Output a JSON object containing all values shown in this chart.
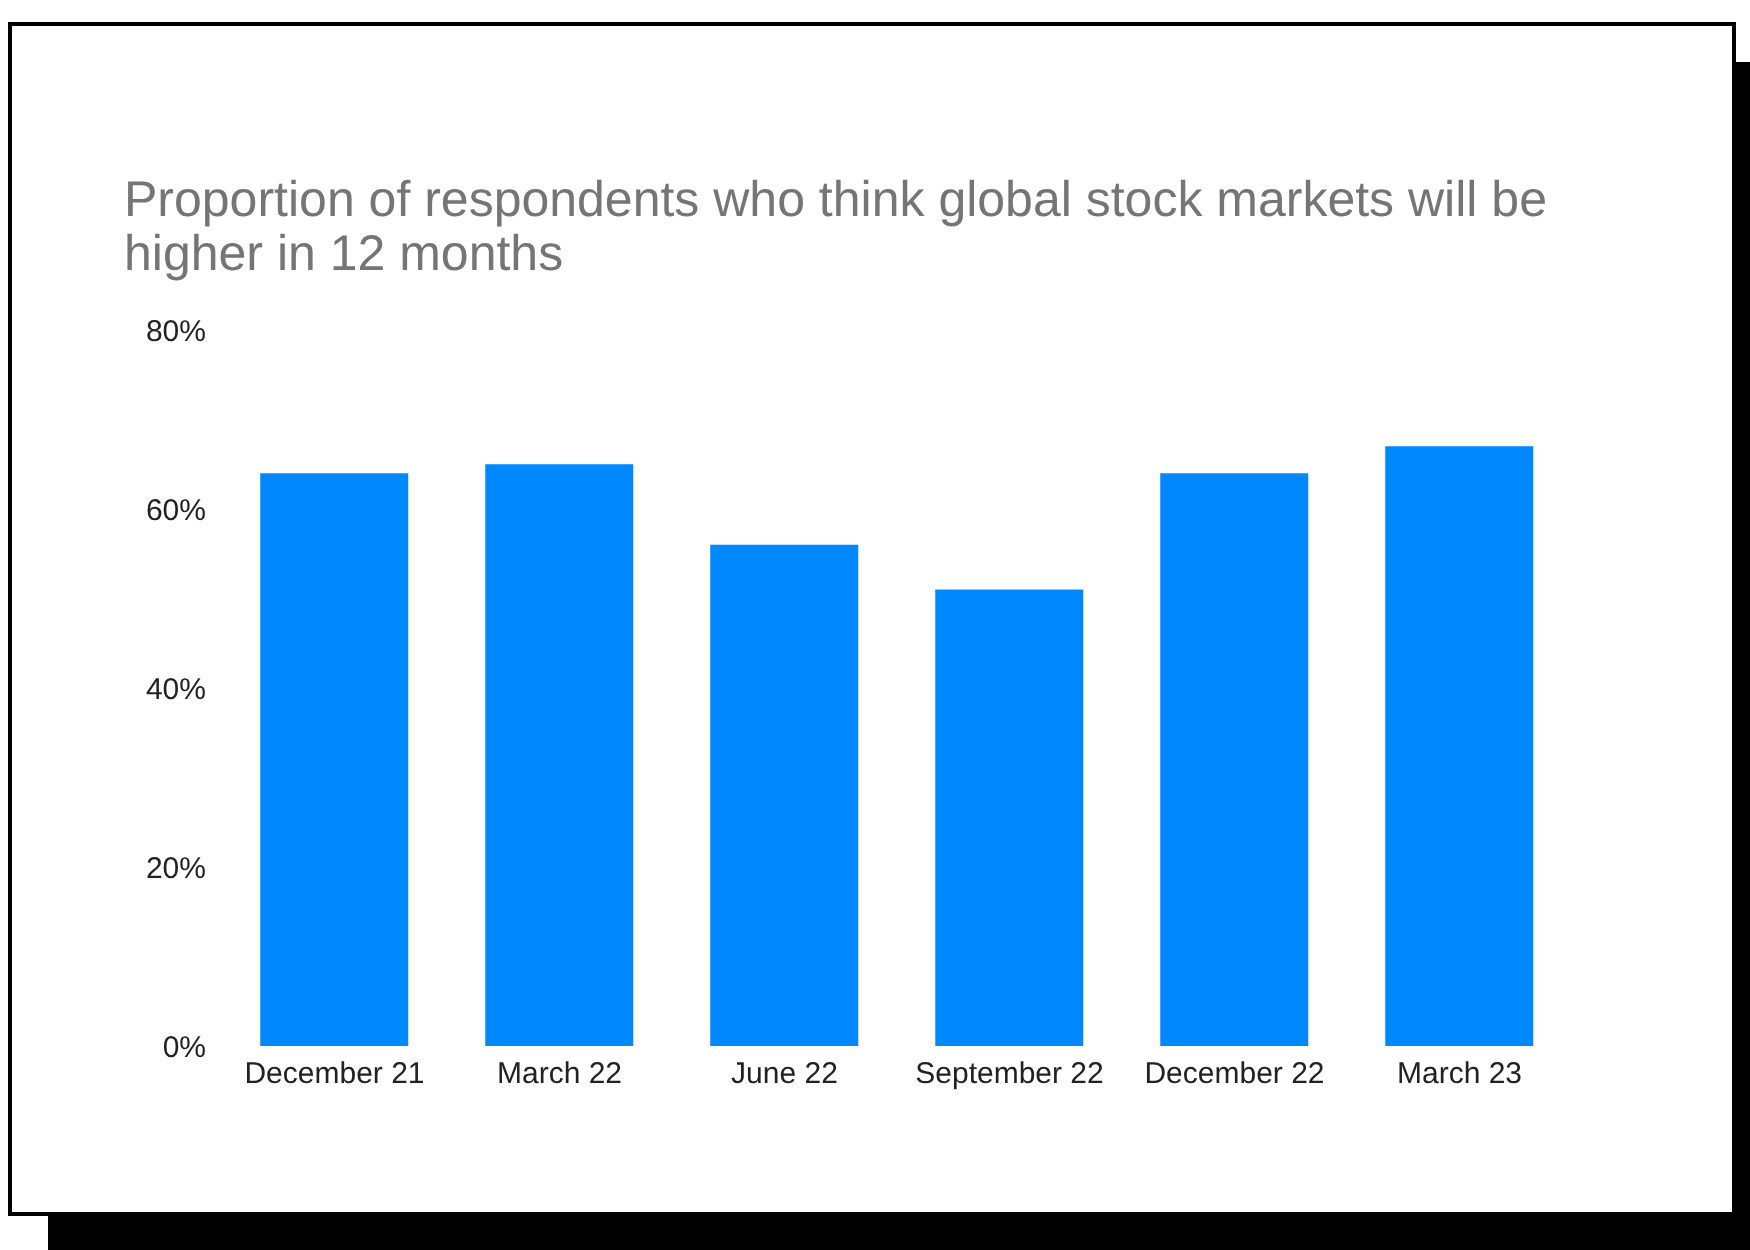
{
  "chart_data": {
    "type": "bar",
    "title": "Proportion of respondents who think global stock markets will be higher in 12 months",
    "categories": [
      "December 21",
      "March 22",
      "June 22",
      "September 22",
      "December 22",
      "March 23"
    ],
    "values": [
      64,
      65,
      56,
      51,
      64,
      67
    ],
    "color": "#0088ff",
    "ylim": [
      0,
      80
    ],
    "yticks": [
      {
        "value": 0,
        "label": "0%"
      },
      {
        "value": 20,
        "label": "20%"
      },
      {
        "value": 40,
        "label": "40%"
      },
      {
        "value": 60,
        "label": "60%"
      },
      {
        "value": 80,
        "label": "80%"
      }
    ],
    "grid": false,
    "legend": false
  }
}
